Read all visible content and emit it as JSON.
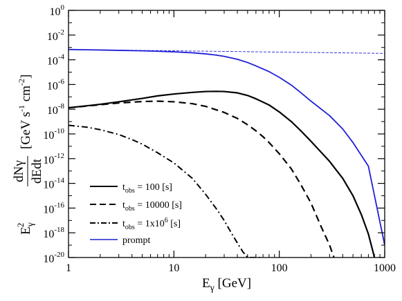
{
  "chart_data": {
    "type": "line",
    "title": "",
    "xlabel": {
      "base": "E",
      "sub": "γ",
      "unit": " [GeV]"
    },
    "ylabel": {
      "pre_base": "E",
      "pre_sup": "2",
      "pre_sub": "γ",
      "frac_num": "dNγ",
      "frac_den": "dEdt",
      "unit_main": "[GeV s",
      "unit_s_exp": "-1",
      "unit_cm": " cm",
      "unit_cm_exp": "-2",
      "unit_close": "]"
    },
    "x_scale": "log",
    "y_scale": "log",
    "xlim": [
      1,
      1000
    ],
    "ylim": [
      1e-20,
      1
    ],
    "grid": false,
    "x_ticks": [
      {
        "value": 1,
        "label": "1"
      },
      {
        "value": 10,
        "label": "10"
      },
      {
        "value": 100,
        "label": "100"
      },
      {
        "value": 1000,
        "label": "1000"
      }
    ],
    "y_ticks": [
      {
        "value": 1,
        "base": "10",
        "exp": "0"
      },
      {
        "value": 0.01,
        "base": "10",
        "exp": "-2"
      },
      {
        "value": 0.0001,
        "base": "10",
        "exp": "-4"
      },
      {
        "value": 1e-06,
        "base": "10",
        "exp": "-6"
      },
      {
        "value": 1e-08,
        "base": "10",
        "exp": "-8"
      },
      {
        "value": 1e-10,
        "base": "10",
        "exp": "-10"
      },
      {
        "value": 1e-12,
        "base": "10",
        "exp": "-12"
      },
      {
        "value": 1e-14,
        "base": "10",
        "exp": "-14"
      },
      {
        "value": 1e-16,
        "base": "10",
        "exp": "-16"
      },
      {
        "value": 1e-18,
        "base": "10",
        "exp": "-18"
      },
      {
        "value": 1e-20,
        "base": "10",
        "exp": "-20"
      }
    ],
    "legend_placement": "lower-left",
    "series": [
      {
        "legend": {
          "base": "t",
          "sub": "obs",
          "text": " = 100 [s]"
        },
        "color": "#000000",
        "style": "solid",
        "x": [
          1,
          2,
          3,
          5,
          7,
          10,
          15,
          20,
          25,
          30,
          40,
          50,
          60,
          80,
          100,
          130,
          160,
          200,
          300,
          400,
          500,
          600,
          700,
          800
        ],
        "y": [
          1.3e-08,
          2.5e-08,
          4e-08,
          7.5e-08,
          1.2e-07,
          1.7e-07,
          2.3e-07,
          2.7e-07,
          2.8e-07,
          2.7e-07,
          2.1e-07,
          1.3e-07,
          7e-08,
          2.2e-08,
          6e-09,
          1e-09,
          1.8e-10,
          2.5e-11,
          6e-13,
          2.5e-14,
          1e-15,
          3e-17,
          8e-19,
          1e-20
        ]
      },
      {
        "legend": {
          "base": "t",
          "sub": "obs",
          "text": " = 10000 [s]"
        },
        "color": "#000000",
        "style": "dashed",
        "x": [
          1,
          2,
          3,
          5,
          7,
          10,
          15,
          20,
          30,
          40,
          50,
          60,
          70,
          80,
          100,
          130,
          160,
          200,
          250,
          300,
          330
        ],
        "y": [
          1.3e-08,
          2.3e-08,
          3.2e-08,
          4.2e-08,
          4.5e-08,
          4e-08,
          2.8e-08,
          1.7e-08,
          5.5e-09,
          1.8e-09,
          5.5e-10,
          1.8e-10,
          6e-11,
          2e-11,
          2.5e-12,
          1.5e-13,
          8e-15,
          2.5e-16,
          3e-18,
          1e-19,
          1e-20
        ]
      },
      {
        "legend": {
          "base": "t",
          "sub": "obs",
          "text_a": " = 1x10",
          "sup": "6",
          "text_b": " [s]"
        },
        "color": "#000000",
        "style": "dashdot",
        "x": [
          1,
          1.5,
          2,
          3,
          4,
          5,
          7,
          10,
          15,
          20,
          25,
          30,
          35,
          40,
          45,
          50,
          55,
          60,
          65,
          70
        ],
        "y": [
          5e-10,
          3.5e-10,
          2.2e-10,
          9e-11,
          3.5e-11,
          1.5e-11,
          3e-12,
          4.5e-13,
          2.5e-14,
          1.3e-15,
          1e-16,
          1e-17,
          1e-18,
          1.5e-19,
          3e-20,
          1e-20,
          1e-20,
          1e-20,
          1e-20,
          1e-20
        ]
      },
      {
        "legend": {
          "text": "prompt"
        },
        "color": "#1f1fd6",
        "style": "solid",
        "x": [
          1,
          2,
          3,
          5,
          7,
          10,
          15,
          20,
          25,
          30,
          40,
          50,
          60,
          80,
          100,
          130,
          160,
          200,
          300,
          400,
          500,
          700,
          1000
        ],
        "y": [
          0.00068,
          0.00062,
          0.00058,
          0.00053,
          0.00049,
          0.00044,
          0.00037,
          0.0003,
          0.00024,
          0.00019,
          0.00011,
          6e-05,
          3.2e-05,
          1.1e-05,
          3.8e-06,
          9e-07,
          2.2e-07,
          4.5e-08,
          3e-09,
          2.5e-10,
          2e-11,
          2.5e-13,
          1e-19
        ]
      },
      {
        "legend": null,
        "color": "#1f1fd6",
        "style": "thin-dashed",
        "x": [
          1,
          1000
        ],
        "y": [
          0.00068,
          0.00033
        ]
      }
    ]
  }
}
